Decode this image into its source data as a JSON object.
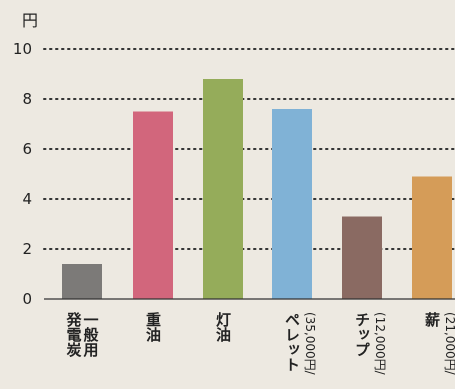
{
  "chart_data": {
    "type": "bar",
    "unit_label": "円",
    "categories": [
      "一般用発電炭",
      "重油",
      "灯油",
      "ペレット",
      "チップ",
      "薪"
    ],
    "category_lines": [
      [
        "一般用",
        "発電炭"
      ],
      [
        "重油"
      ],
      [
        "灯油"
      ],
      [
        "ペレット"
      ],
      [
        "チップ"
      ],
      [
        "薪"
      ]
    ],
    "category_sublabels": [
      "",
      "",
      "",
      "(35,000円/",
      "(12,000円/",
      "(21,000円/"
    ],
    "values": [
      1.4,
      7.5,
      8.8,
      7.6,
      3.3,
      4.9
    ],
    "colors": [
      "#7c7a78",
      "#d2667c",
      "#95ac5a",
      "#80b2d6",
      "#8a6a62",
      "#d59c58"
    ],
    "ylim": [
      0,
      10
    ],
    "yticks": [
      0,
      2,
      4,
      6,
      8,
      10
    ],
    "grid": true,
    "title": "",
    "xlabel": "",
    "ylabel": "円"
  }
}
